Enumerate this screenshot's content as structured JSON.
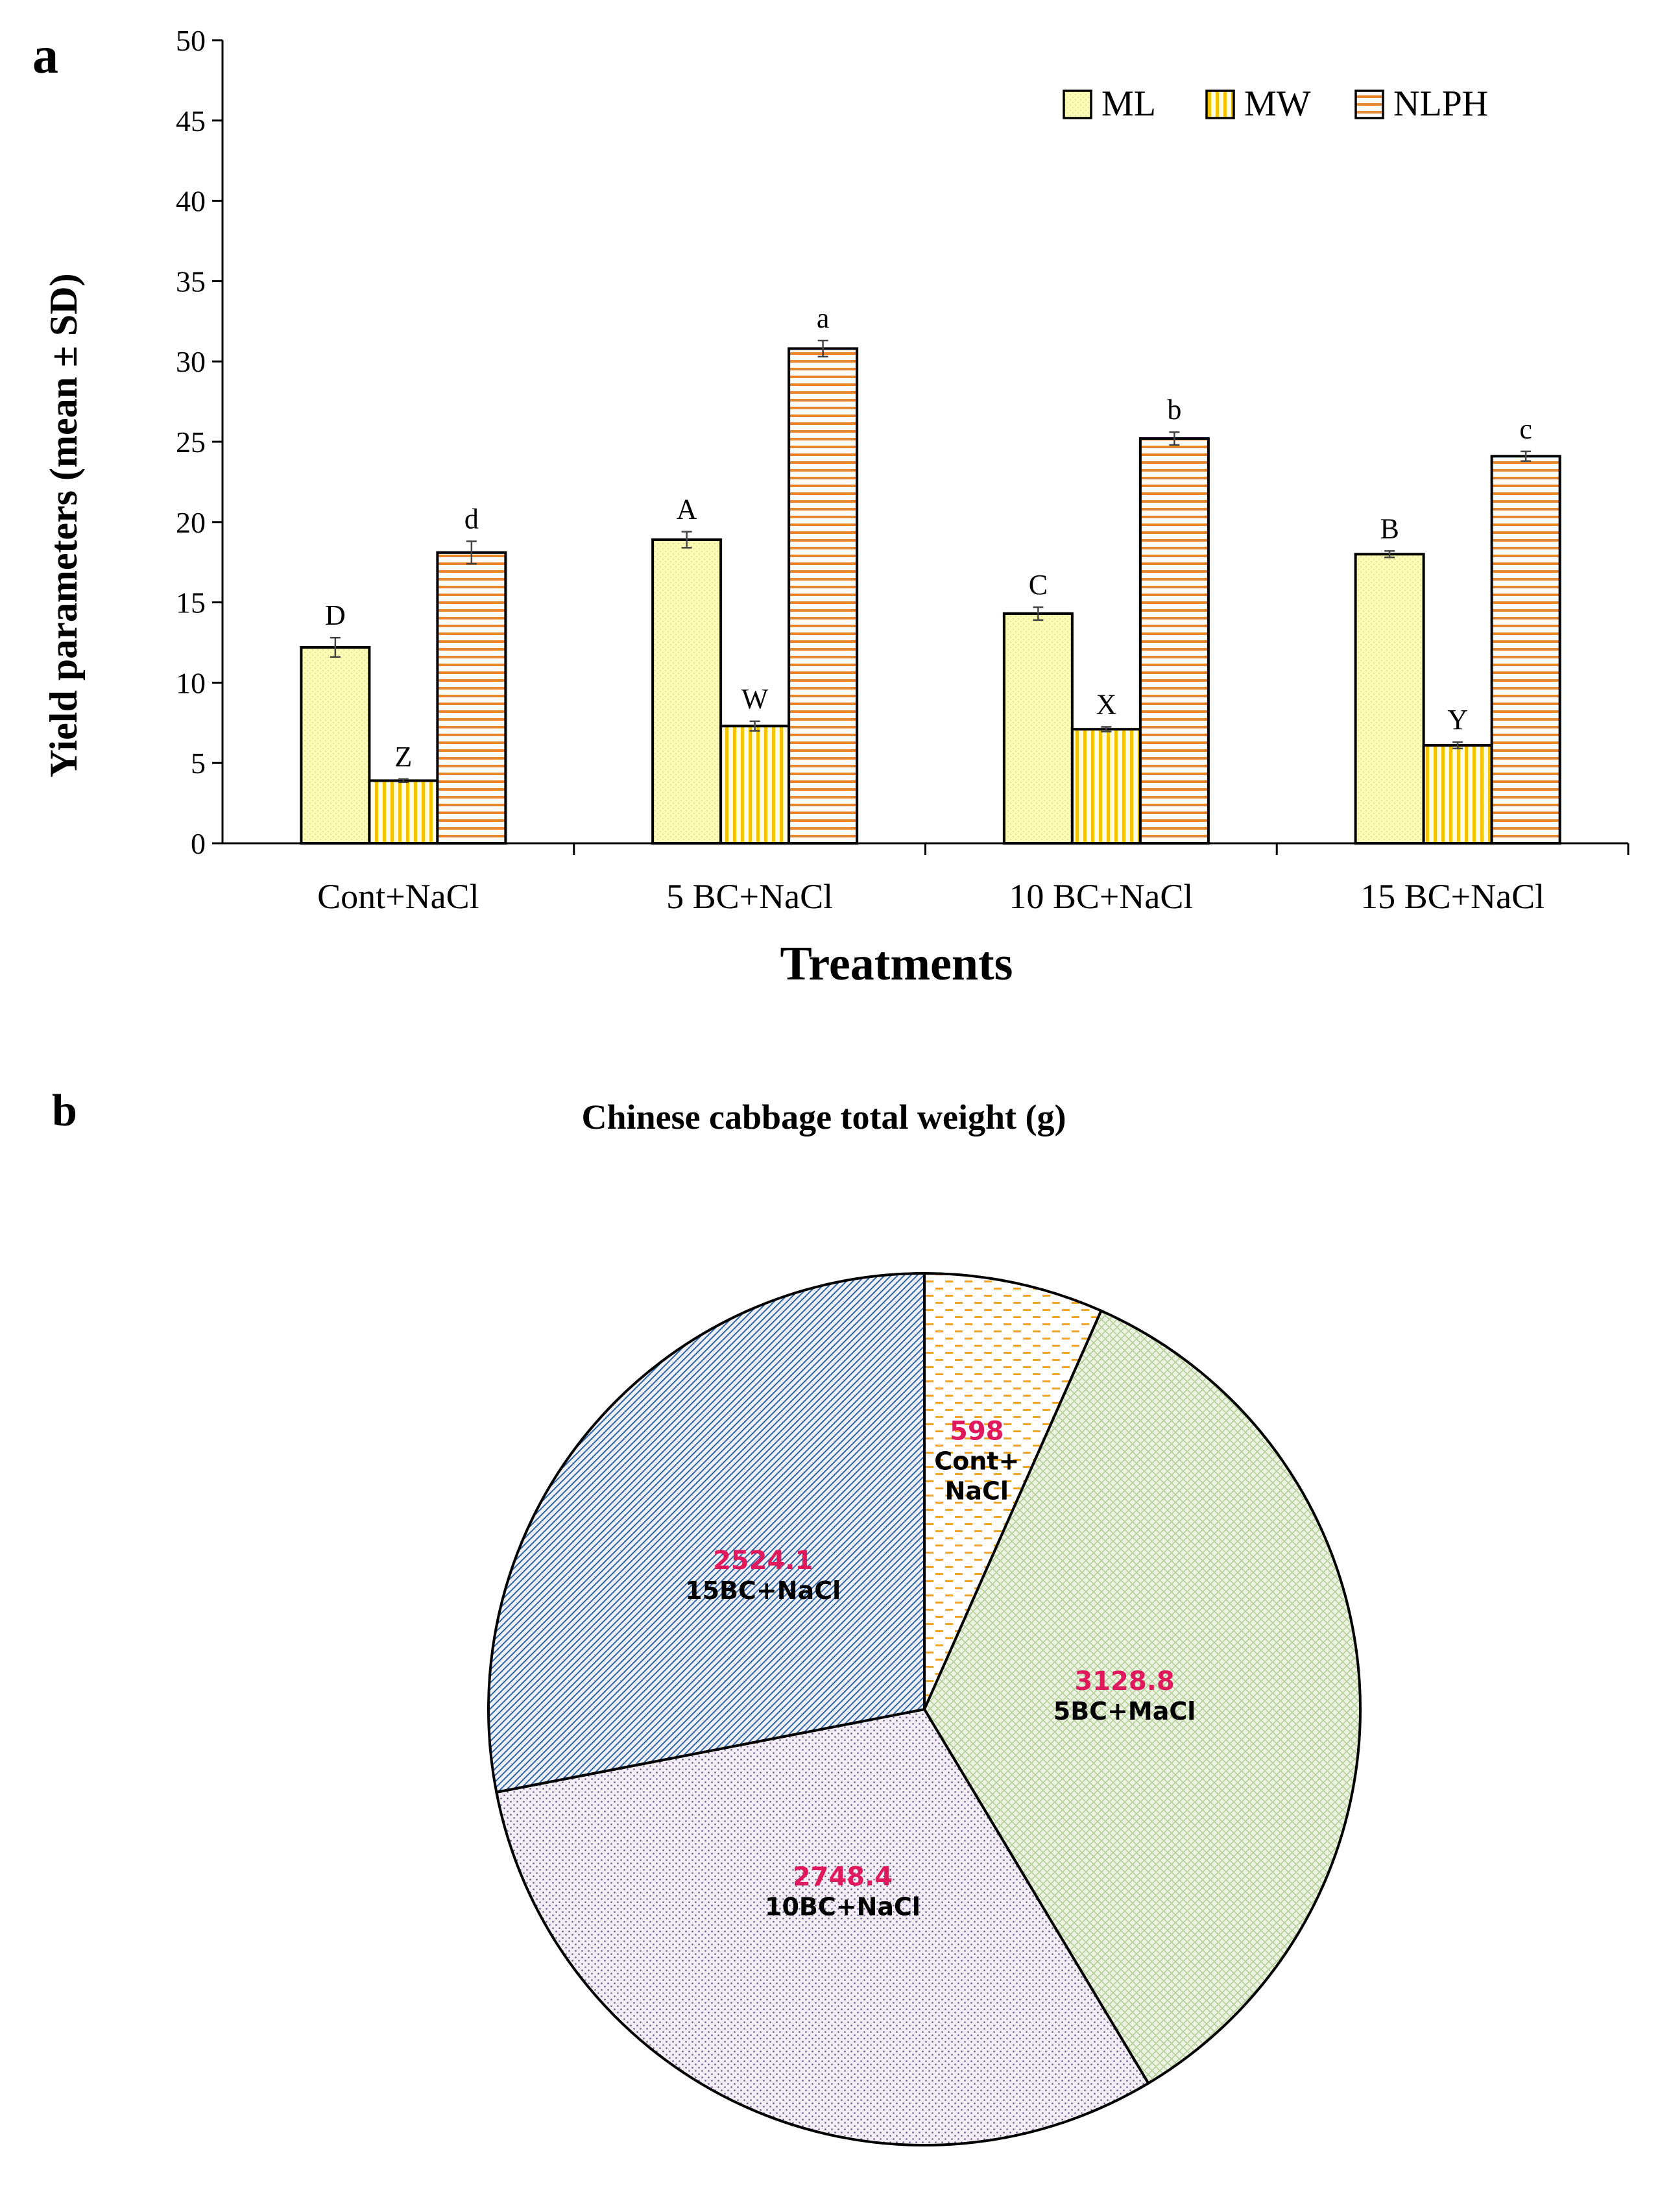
{
  "colors": {
    "ml_fill": "#fcfcb8",
    "ml_hatch": "#e2e283",
    "mw_fill": "#fffbe6",
    "mw_stripe": "#f5c400",
    "nlph_fill": "#ffffff",
    "nlph_stripe": "#e8852d",
    "pie_label_value": "#e0195c",
    "axis": "#000000"
  },
  "chart_data": [
    {
      "panel_label": "a",
      "type": "bar",
      "title": "",
      "xlabel": "Treatments",
      "ylabel": "Yield parameters (mean ± SD)",
      "ylim": [
        0,
        50
      ],
      "yticks": [
        "0",
        "5",
        "10",
        "15",
        "20",
        "25",
        "30",
        "35",
        "40",
        "45",
        "50"
      ],
      "grid": false,
      "legend_position": "top-right",
      "categories": [
        "Cont+NaCl",
        "5 BC+NaCl",
        "10 BC+NaCl",
        "15 BC+NaCl"
      ],
      "series": [
        {
          "name": "ML",
          "pattern": "dots",
          "values": [
            12.2,
            18.9,
            14.3,
            18.0
          ],
          "errors": [
            0.6,
            0.5,
            0.4,
            0.2
          ],
          "letters": [
            "D",
            "A",
            "C",
            "B"
          ]
        },
        {
          "name": "MW",
          "pattern": "vertical",
          "values": [
            3.9,
            7.3,
            7.1,
            6.1
          ],
          "errors": [
            0.1,
            0.3,
            0.15,
            0.2
          ],
          "letters": [
            "Z",
            "W",
            "X",
            "Y"
          ]
        },
        {
          "name": "NLPH",
          "pattern": "horizontal",
          "values": [
            18.1,
            30.8,
            25.2,
            24.1
          ],
          "errors": [
            0.7,
            0.5,
            0.4,
            0.3
          ],
          "letters": [
            "d",
            "a",
            "b",
            "c"
          ]
        }
      ]
    },
    {
      "panel_label": "b",
      "type": "pie",
      "title": "Chinese cabbage total weight (g)",
      "slices": [
        {
          "label": "Cont+\nNaCl",
          "value": 598,
          "value_label": "598",
          "fill": "#ffffff",
          "stroke": "#f0a428",
          "pattern": "dashes"
        },
        {
          "label": "5BC+MaCl",
          "value": 3128.8,
          "value_label": "3128.8",
          "fill": "#edf3e3",
          "stroke": "#a9c98c",
          "pattern": "crosshatch"
        },
        {
          "label": "10BC+NaCl",
          "value": 2748.4,
          "value_label": "2748.4",
          "fill": "#f3eef5",
          "stroke": "#6a5a8a",
          "pattern": "dots"
        },
        {
          "label": "15BC+NaCl",
          "value": 2524.1,
          "value_label": "2524.1",
          "fill": "#eef2f8",
          "stroke": "#2f63a8",
          "pattern": "diagonal"
        }
      ]
    }
  ]
}
